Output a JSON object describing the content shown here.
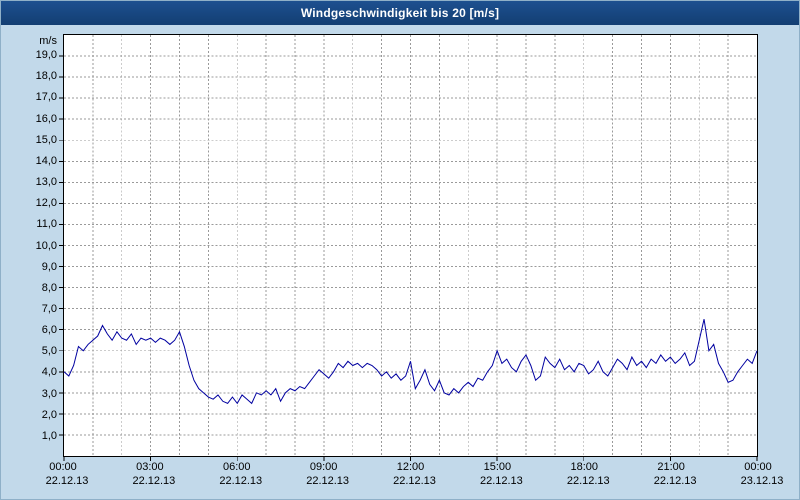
{
  "window": {
    "title": "Windgeschwindigkeit bis 20 [m/s]"
  },
  "colors": {
    "titlebar": "#17467f",
    "background": "#c2d9ea",
    "plot_background": "#ffffff",
    "grid": "#9a9a9a",
    "series_line": "#0000a0"
  },
  "chart_data": {
    "type": "line",
    "title": "Windgeschwindigkeit bis 20 [m/s]",
    "xlabel": "",
    "ylabel": "m/s",
    "ylim": [
      0,
      20
    ],
    "xlim_hours": [
      0,
      24
    ],
    "grid": {
      "on": true,
      "x_step_hours": 1,
      "y_step": 1,
      "style": "dashed"
    },
    "legend": "none",
    "y_ticks": [
      {
        "v": 19,
        "label": "19,0"
      },
      {
        "v": 18,
        "label": "18,0"
      },
      {
        "v": 17,
        "label": "17,0"
      },
      {
        "v": 16,
        "label": "16,0"
      },
      {
        "v": 15,
        "label": "15,0"
      },
      {
        "v": 14,
        "label": "14,0"
      },
      {
        "v": 13,
        "label": "13,0"
      },
      {
        "v": 12,
        "label": "12,0"
      },
      {
        "v": 11,
        "label": "11,0"
      },
      {
        "v": 10,
        "label": "10,0"
      },
      {
        "v": 9,
        "label": "9,0"
      },
      {
        "v": 8,
        "label": "8,0"
      },
      {
        "v": 7,
        "label": "7,0"
      },
      {
        "v": 6,
        "label": "6,0"
      },
      {
        "v": 5,
        "label": "5,0"
      },
      {
        "v": 4,
        "label": "4,0"
      },
      {
        "v": 3,
        "label": "3,0"
      },
      {
        "v": 2,
        "label": "2,0"
      },
      {
        "v": 1,
        "label": "1,0"
      }
    ],
    "x_ticks": [
      {
        "hour": 0,
        "time": "00:00",
        "date": "22.12.13"
      },
      {
        "hour": 3,
        "time": "03:00",
        "date": "22.12.13"
      },
      {
        "hour": 6,
        "time": "06:00",
        "date": "22.12.13"
      },
      {
        "hour": 9,
        "time": "09:00",
        "date": "22.12.13"
      },
      {
        "hour": 12,
        "time": "12:00",
        "date": "22.12.13"
      },
      {
        "hour": 15,
        "time": "15:00",
        "date": "22.12.13"
      },
      {
        "hour": 18,
        "time": "18:00",
        "date": "22.12.13"
      },
      {
        "hour": 21,
        "time": "21:00",
        "date": "22.12.13"
      },
      {
        "hour": 24,
        "time": "00:00",
        "date": "23.12.13"
      }
    ],
    "x_spacing": "even",
    "series": [
      {
        "name": "Windgeschwindigkeit",
        "color": "#0000a0",
        "unit": "m/s",
        "values": [
          4.0,
          3.8,
          4.3,
          5.2,
          5.0,
          5.3,
          5.5,
          5.7,
          6.2,
          5.8,
          5.5,
          5.9,
          5.6,
          5.5,
          5.8,
          5.3,
          5.6,
          5.5,
          5.6,
          5.4,
          5.6,
          5.5,
          5.3,
          5.5,
          5.9,
          5.2,
          4.3,
          3.6,
          3.2,
          3.0,
          2.8,
          2.7,
          2.9,
          2.6,
          2.5,
          2.8,
          2.5,
          2.9,
          2.7,
          2.5,
          3.0,
          2.9,
          3.1,
          2.9,
          3.2,
          2.6,
          3.0,
          3.2,
          3.1,
          3.3,
          3.2,
          3.5,
          3.8,
          4.1,
          3.9,
          3.7,
          4.0,
          4.4,
          4.2,
          4.5,
          4.3,
          4.4,
          4.2,
          4.4,
          4.3,
          4.1,
          3.8,
          4.0,
          3.7,
          3.9,
          3.6,
          3.8,
          4.5,
          3.2,
          3.6,
          4.1,
          3.4,
          3.1,
          3.6,
          3.0,
          2.9,
          3.2,
          3.0,
          3.3,
          3.5,
          3.3,
          3.7,
          3.6,
          4.0,
          4.3,
          5.0,
          4.4,
          4.6,
          4.2,
          4.0,
          4.5,
          4.8,
          4.3,
          3.6,
          3.8,
          4.7,
          4.4,
          4.2,
          4.6,
          4.1,
          4.3,
          4.0,
          4.4,
          4.3,
          3.9,
          4.1,
          4.5,
          4.0,
          3.8,
          4.2,
          4.6,
          4.4,
          4.1,
          4.7,
          4.3,
          4.5,
          4.2,
          4.6,
          4.4,
          4.8,
          4.5,
          4.7,
          4.4,
          4.6,
          4.9,
          4.3,
          4.5,
          5.5,
          6.5,
          5.0,
          5.3,
          4.4,
          4.0,
          3.5,
          3.6,
          4.0,
          4.3,
          4.6,
          4.4,
          5.0
        ]
      }
    ]
  }
}
